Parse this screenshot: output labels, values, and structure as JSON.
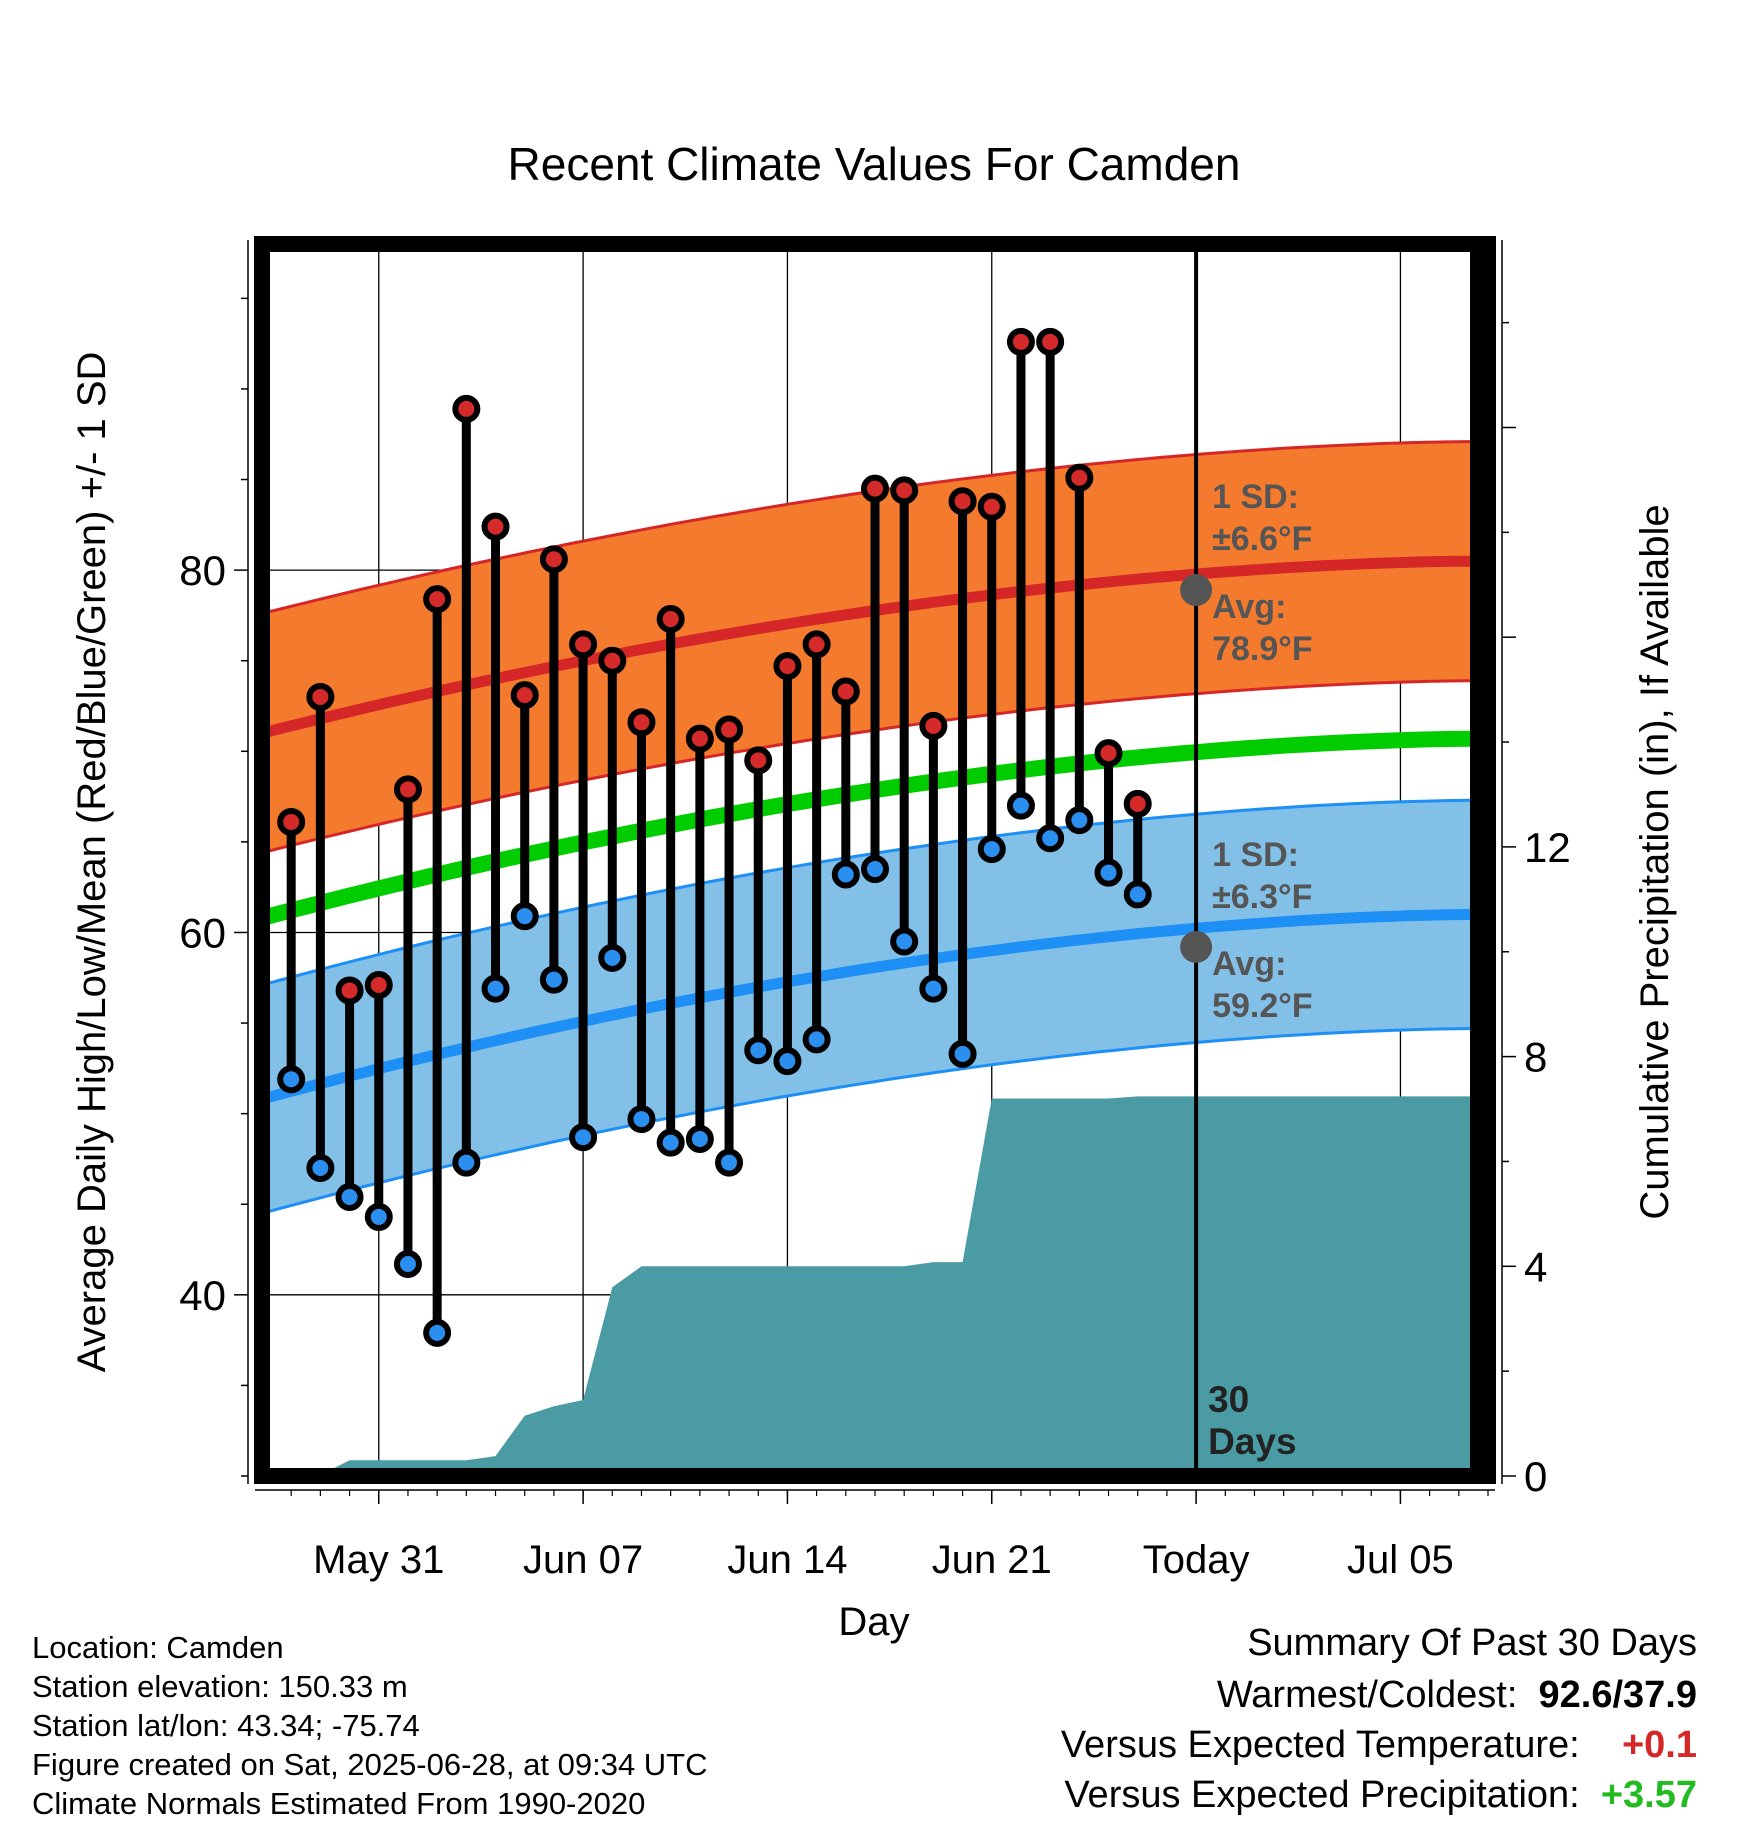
{
  "chart_data": {
    "type": "line",
    "title": "Recent Climate Values For Camden",
    "xlabel": "Day",
    "ylabel_left": "Average Daily High/Low/Mean (Red/Blue/Green) +/- 1 SD",
    "ylabel_right": "Cumulative Precipitation (in), If Available",
    "x_range": [
      "2025-05-27",
      "2025-07-08"
    ],
    "y_left_range": [
      30,
      98
    ],
    "y_right_range": [
      0,
      23.5
    ],
    "x_ticks": [
      {
        "date": "2025-05-31",
        "label": "May 31"
      },
      {
        "date": "2025-06-07",
        "label": "Jun 07"
      },
      {
        "date": "2025-06-14",
        "label": "Jun 14"
      },
      {
        "date": "2025-06-21",
        "label": "Jun 21"
      },
      {
        "date": "2025-06-28",
        "label": "Today"
      },
      {
        "date": "2025-07-05",
        "label": "Jul 05"
      }
    ],
    "y_left_ticks": [
      40,
      60,
      80
    ],
    "y_right_ticks": [
      0,
      4,
      8,
      12
    ],
    "grid": true,
    "today": "2025-06-28",
    "today_label": "30 Days",
    "normal_high": {
      "start": 71.0,
      "end": 80.5,
      "sd": 6.6
    },
    "normal_low": {
      "start": 50.8,
      "end": 61.0,
      "sd": 6.3
    },
    "normal_mean": {
      "start": 60.8,
      "end": 70.7
    },
    "high_annotation": {
      "sd_label": "1 SD:",
      "sd_value": "±6.6°F",
      "avg_label": "Avg:",
      "avg_value": "78.9°F",
      "avg": 78.9
    },
    "low_annotation": {
      "sd_label": "1 SD:",
      "sd_value": "±6.3°F",
      "avg_label": "Avg:",
      "avg_value": "59.2°F",
      "avg": 59.2
    },
    "daily": [
      {
        "date": "2025-05-28",
        "high": 66.1,
        "low": 51.9
      },
      {
        "date": "2025-05-29",
        "high": 73.0,
        "low": 47.0
      },
      {
        "date": "2025-05-30",
        "high": 56.8,
        "low": 45.4
      },
      {
        "date": "2025-05-31",
        "high": 57.1,
        "low": 44.3
      },
      {
        "date": "2025-06-01",
        "high": 67.9,
        "low": 41.7
      },
      {
        "date": "2025-06-02",
        "high": 78.4,
        "low": 37.9
      },
      {
        "date": "2025-06-03",
        "high": 88.9,
        "low": 47.3
      },
      {
        "date": "2025-06-04",
        "high": 82.4,
        "low": 56.9
      },
      {
        "date": "2025-06-05",
        "high": 73.1,
        "low": 60.9
      },
      {
        "date": "2025-06-06",
        "high": 80.6,
        "low": 57.4
      },
      {
        "date": "2025-06-07",
        "high": 75.9,
        "low": 48.7
      },
      {
        "date": "2025-06-08",
        "high": 75.0,
        "low": 58.6
      },
      {
        "date": "2025-06-09",
        "high": 71.6,
        "low": 49.7
      },
      {
        "date": "2025-06-10",
        "high": 77.3,
        "low": 48.4
      },
      {
        "date": "2025-06-11",
        "high": 70.7,
        "low": 48.6
      },
      {
        "date": "2025-06-12",
        "high": 71.2,
        "low": 47.3
      },
      {
        "date": "2025-06-13",
        "high": 69.5,
        "low": 53.5
      },
      {
        "date": "2025-06-14",
        "high": 74.7,
        "low": 52.9
      },
      {
        "date": "2025-06-15",
        "high": 75.9,
        "low": 54.1
      },
      {
        "date": "2025-06-16",
        "high": 73.3,
        "low": 63.2
      },
      {
        "date": "2025-06-17",
        "high": 84.5,
        "low": 63.5
      },
      {
        "date": "2025-06-18",
        "high": 84.4,
        "low": 59.5
      },
      {
        "date": "2025-06-19",
        "high": 71.4,
        "low": 56.9
      },
      {
        "date": "2025-06-20",
        "high": 83.8,
        "low": 53.3
      },
      {
        "date": "2025-06-21",
        "high": 83.5,
        "low": 64.6
      },
      {
        "date": "2025-06-22",
        "high": 92.6,
        "low": 67.0
      },
      {
        "date": "2025-06-23",
        "high": 92.6,
        "low": 65.2
      },
      {
        "date": "2025-06-24",
        "high": 85.1,
        "low": 66.2
      },
      {
        "date": "2025-06-25",
        "high": 69.9,
        "low": 63.3
      },
      {
        "date": "2025-06-26",
        "high": 67.1,
        "low": 62.1
      }
    ],
    "precip_cumulative": [
      {
        "date": "2025-05-27",
        "value": 0.0
      },
      {
        "date": "2025-05-29",
        "value": 0.02
      },
      {
        "date": "2025-05-30",
        "value": 0.3
      },
      {
        "date": "2025-06-03",
        "value": 0.3
      },
      {
        "date": "2025-06-04",
        "value": 0.38
      },
      {
        "date": "2025-06-05",
        "value": 1.15
      },
      {
        "date": "2025-06-06",
        "value": 1.33
      },
      {
        "date": "2025-06-07",
        "value": 1.45
      },
      {
        "date": "2025-06-08",
        "value": 3.6
      },
      {
        "date": "2025-06-09",
        "value": 4.0
      },
      {
        "date": "2025-06-18",
        "value": 4.0
      },
      {
        "date": "2025-06-19",
        "value": 4.08
      },
      {
        "date": "2025-06-20",
        "value": 4.08
      },
      {
        "date": "2025-06-21",
        "value": 7.2
      },
      {
        "date": "2025-06-25",
        "value": 7.2
      },
      {
        "date": "2025-06-26",
        "value": 7.24
      },
      {
        "date": "2025-07-08",
        "value": 7.24
      }
    ],
    "colors": {
      "high_band": "#f47b2e",
      "high_line": "#d62728",
      "low_band": "#82c0e8",
      "low_line": "#1e8ff5",
      "mean_line": "#00cc00",
      "precip": "#4a9ba3",
      "high_dot": "#d42a2a",
      "low_dot": "#2b8ff0",
      "annotation_text": "#555555"
    }
  },
  "footer": {
    "location": "Location: Camden",
    "elevation": "Station elevation: 150.33 m",
    "latlon": "Station lat/lon: 43.34; -75.74",
    "created": "Figure created on Sat, 2025-06-28, at 09:34 UTC",
    "normals": "Climate Normals Estimated From 1990-2020"
  },
  "summary": {
    "title": "Summary Of Past 30 Days",
    "warm_cold_label": "Warmest/Coldest:",
    "warm_cold_value": "92.6/37.9",
    "temp_label": "Versus Expected Temperature:",
    "temp_value": "+0.1",
    "temp_color": "#d62728",
    "precip_label": "Versus Expected Precipitation:",
    "precip_value": "+3.57",
    "precip_color": "#22bb22"
  }
}
